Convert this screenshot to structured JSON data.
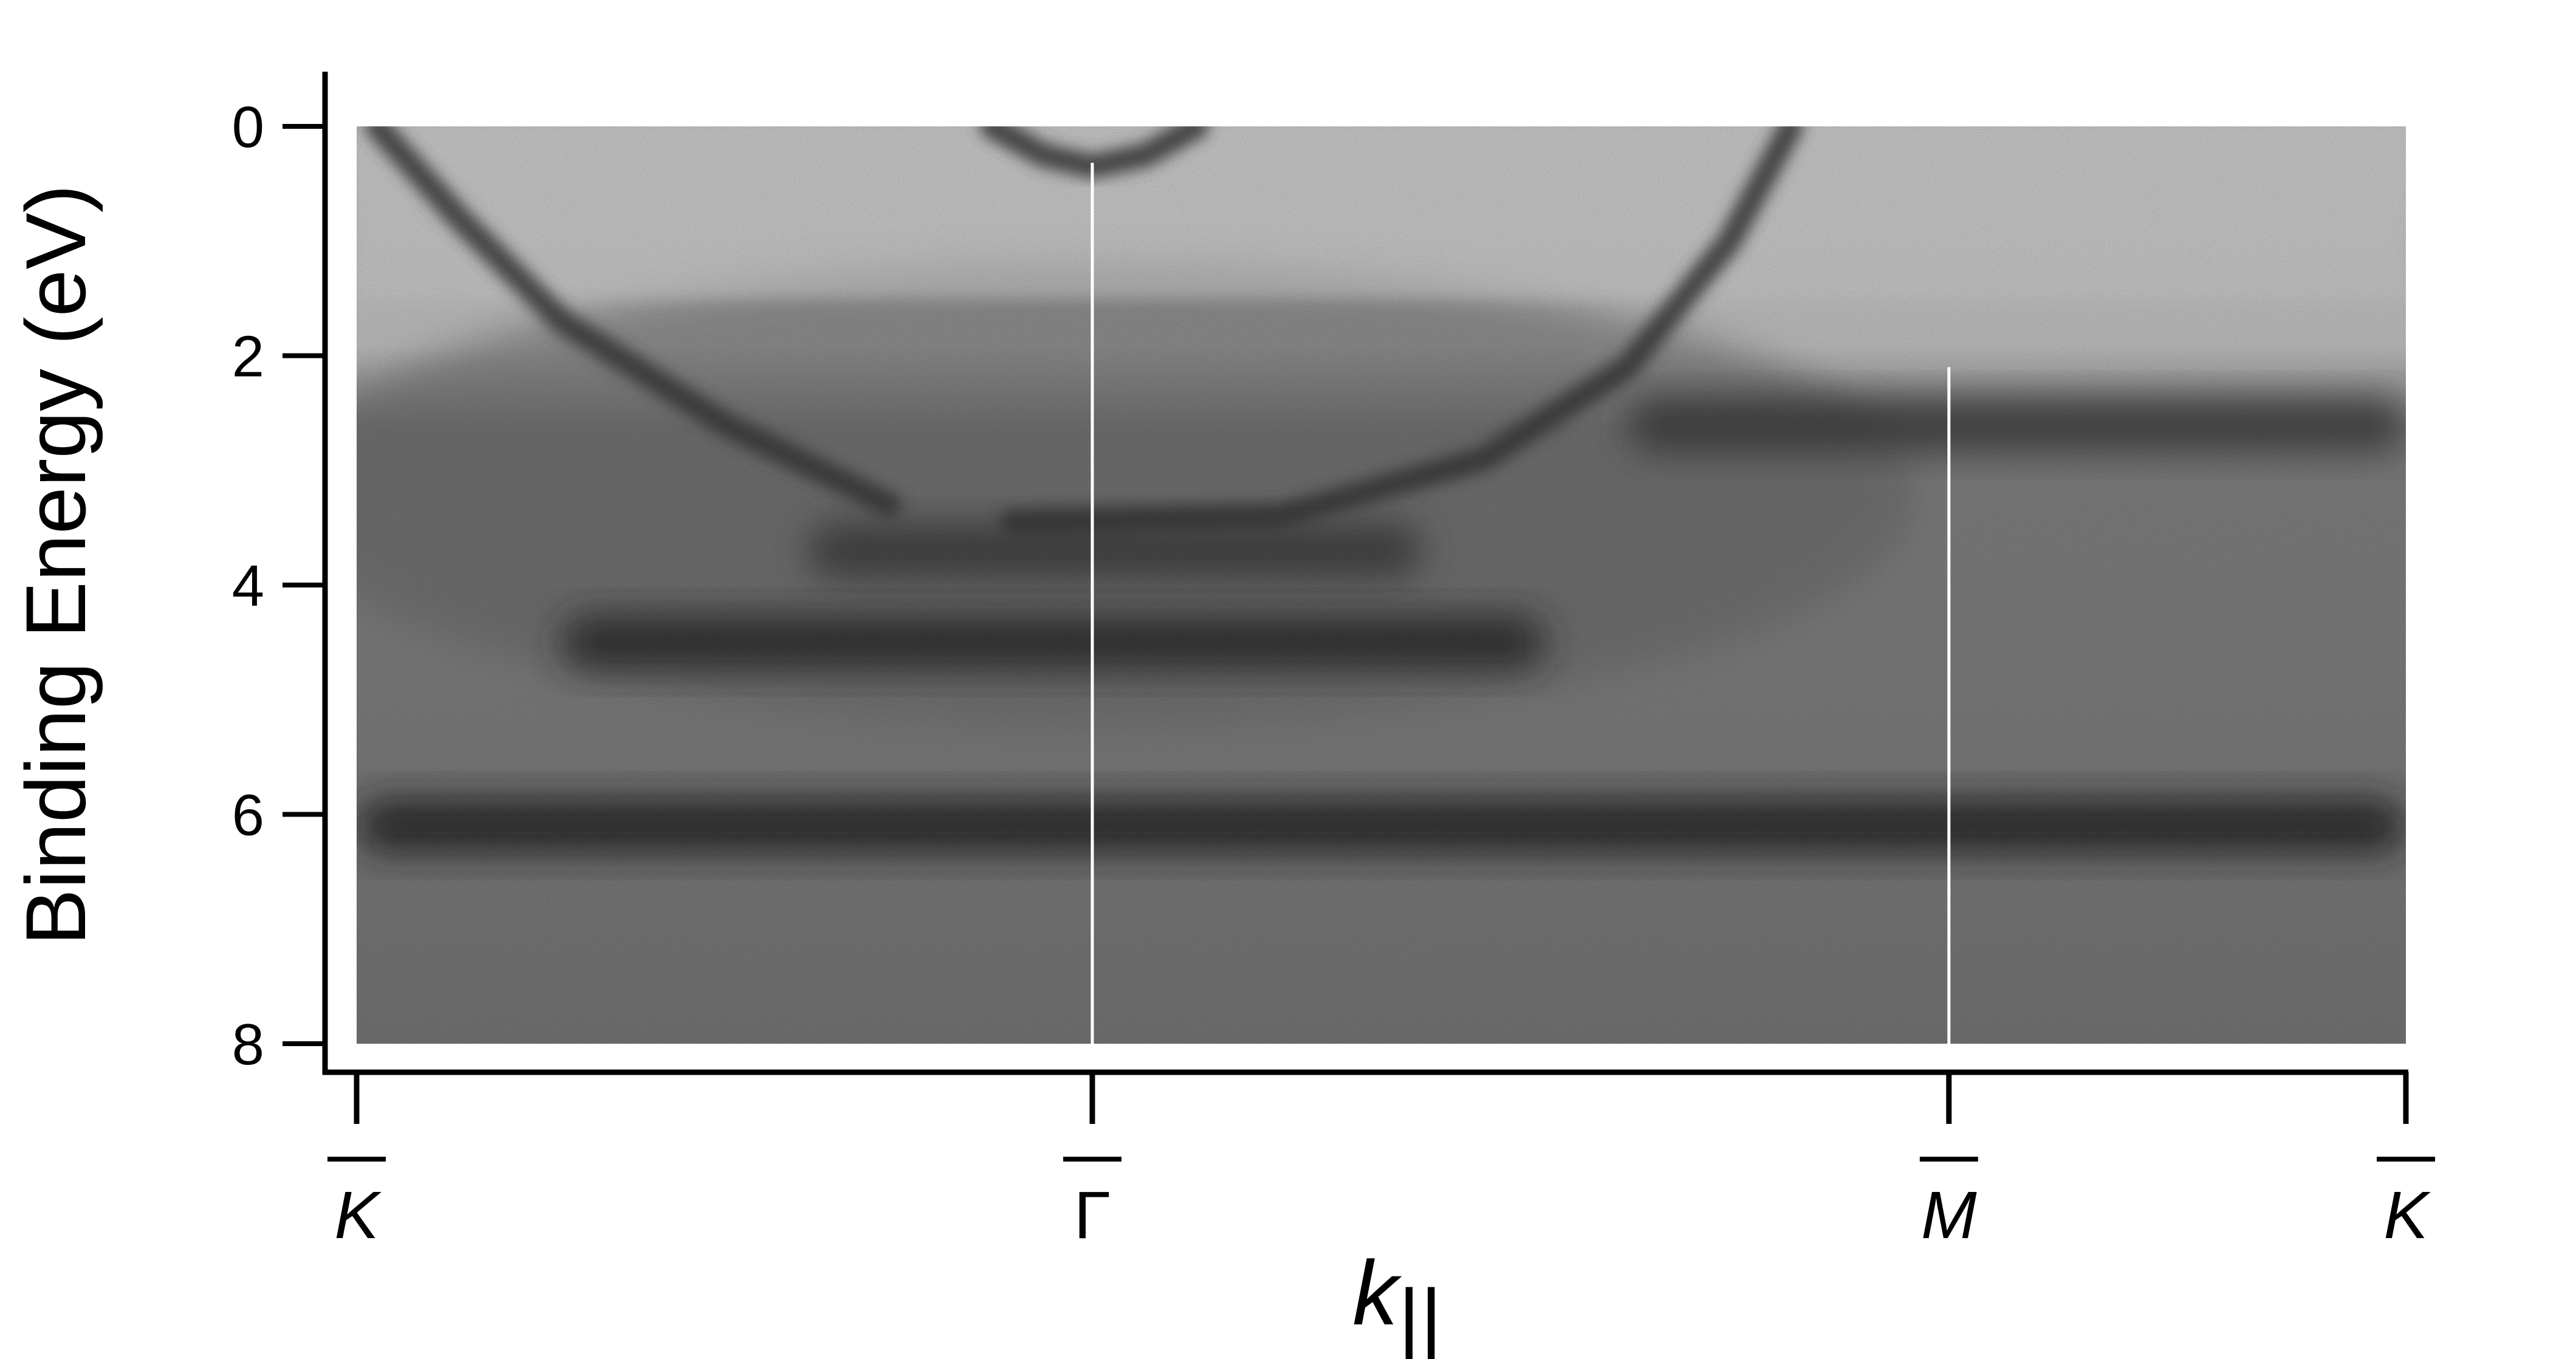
{
  "chart_data": {
    "type": "heatmap",
    "title": "",
    "ylabel": "Binding Energy (eV)",
    "xlabel": "k||",
    "xlabel_main": "k",
    "xlabel_subscript": "||",
    "ylim": [
      8,
      0
    ],
    "y_inverted": true,
    "y_ticks": [
      0,
      2,
      4,
      6,
      8
    ],
    "y_tick_labels": [
      "0",
      "2",
      "4",
      "6",
      "8"
    ],
    "x_high_symmetry_points": [
      {
        "label": "K",
        "position": 0.0,
        "italic": true,
        "overbar": true
      },
      {
        "label": "Γ",
        "position": 0.359,
        "italic": false,
        "overbar": true
      },
      {
        "label": "M",
        "position": 0.777,
        "italic": true,
        "overbar": true
      },
      {
        "label": "K",
        "position": 1.0,
        "italic": true,
        "overbar": true
      }
    ],
    "colormap": "grayscale-inverted",
    "intensity_features": [
      {
        "kind": "band",
        "description": "electron pocket at Gamma",
        "k": [
          0.31,
          0.335,
          0.359,
          0.385,
          0.41
        ],
        "E": [
          0.0,
          0.25,
          0.35,
          0.25,
          0.0
        ]
      },
      {
        "kind": "band",
        "description": "dispersive band from K",
        "k": [
          0.01,
          0.05,
          0.1,
          0.18,
          0.26
        ],
        "E": [
          0.0,
          0.8,
          1.7,
          2.6,
          3.3
        ]
      },
      {
        "kind": "band",
        "description": "dispersive band rising to E_F",
        "k": [
          0.32,
          0.45,
          0.55,
          0.62,
          0.67,
          0.7
        ],
        "E": [
          3.45,
          3.4,
          2.9,
          2.1,
          1.0,
          0.0
        ]
      },
      {
        "kind": "flat",
        "description": "band near 2.6 eV",
        "E": 2.6,
        "k_range": [
          0.62,
          1.0
        ]
      },
      {
        "kind": "flat",
        "description": "band near 3.7 eV",
        "E": 3.7,
        "k_range": [
          0.22,
          0.52
        ]
      },
      {
        "kind": "flat",
        "description": "band near 4.5 eV",
        "E": 4.5,
        "k_range": [
          0.1,
          0.58
        ]
      },
      {
        "kind": "flat",
        "description": "band near 6.1 eV",
        "E": 6.1,
        "k_range": [
          0.0,
          1.0
        ]
      }
    ],
    "vertical_markers_at": [
      0.359,
      0.777
    ]
  }
}
